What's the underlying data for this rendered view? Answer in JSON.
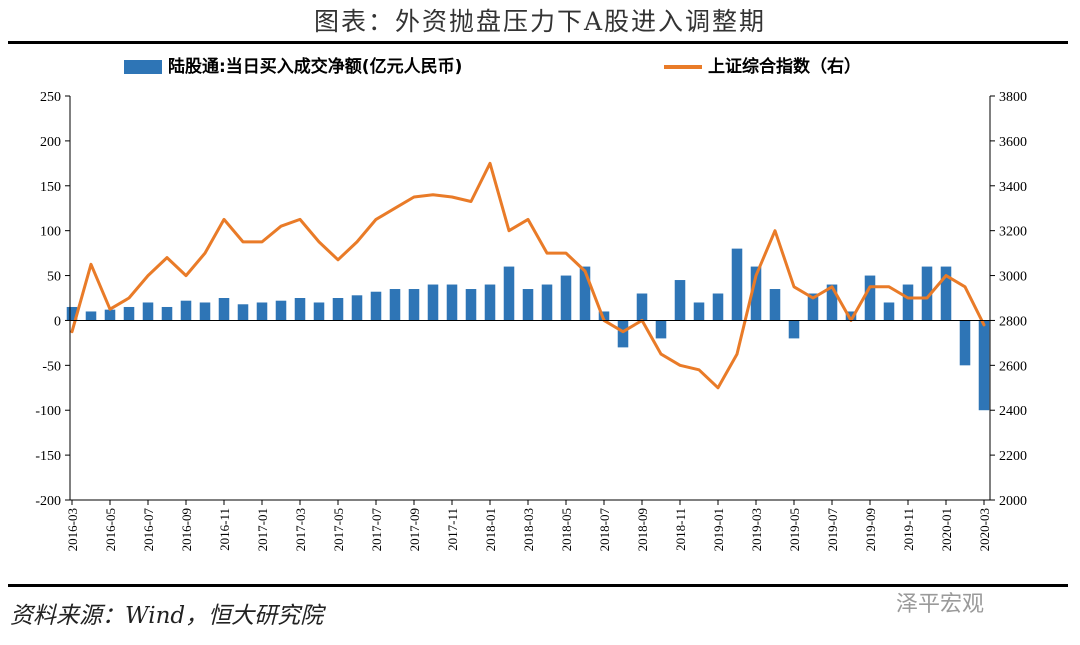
{
  "figure": {
    "title": "图表：外资抛盘压力下A股进入调整期",
    "source": "资料来源：Wind，恒大研究院",
    "watermark": "泽平宏观"
  },
  "chart_data": {
    "type": "bar+line",
    "legend": [
      "陆股通:当日买入成交净额(亿元人民币)",
      "上证综合指数（右）"
    ],
    "legend_position": "top",
    "grid": false,
    "y_left": {
      "range": [
        -200,
        250
      ],
      "ticks": [
        250,
        200,
        150,
        100,
        50,
        0,
        -50,
        -100,
        -150,
        -200
      ]
    },
    "y_right": {
      "range": [
        2000,
        3800
      ],
      "ticks": [
        3800,
        3600,
        3400,
        3200,
        3000,
        2800,
        2600,
        2400,
        2200,
        2000
      ]
    },
    "x_ticks": [
      "2016-03",
      "2016-05",
      "2016-07",
      "2016-09",
      "2016-11",
      "2017-01",
      "2017-03",
      "2017-05",
      "2017-07",
      "2017-09",
      "2017-11",
      "2018-01",
      "2018-03",
      "2018-05",
      "2018-07",
      "2018-09",
      "2018-11",
      "2019-01",
      "2019-03",
      "2019-05",
      "2019-07",
      "2019-09",
      "2019-11",
      "2020-01",
      "2020-03"
    ],
    "x_range": [
      "2016-03",
      "2020-03"
    ],
    "colors": {
      "bars": "#2e75b6",
      "line": "#e97b28"
    },
    "series": [
      {
        "name": "上证综合指数（右）",
        "kind": "line",
        "axis": "right",
        "x": [
          "2016-03",
          "2016-04",
          "2016-05",
          "2016-06",
          "2016-07",
          "2016-08",
          "2016-09",
          "2016-10",
          "2016-11",
          "2016-12",
          "2017-01",
          "2017-02",
          "2017-03",
          "2017-04",
          "2017-05",
          "2017-06",
          "2017-07",
          "2017-08",
          "2017-09",
          "2017-10",
          "2017-11",
          "2017-12",
          "2018-01",
          "2018-02",
          "2018-03",
          "2018-04",
          "2018-05",
          "2018-06",
          "2018-07",
          "2018-08",
          "2018-09",
          "2018-10",
          "2018-11",
          "2018-12",
          "2019-01",
          "2019-02",
          "2019-03",
          "2019-04",
          "2019-05",
          "2019-06",
          "2019-07",
          "2019-08",
          "2019-09",
          "2019-10",
          "2019-11",
          "2019-12",
          "2020-01",
          "2020-02",
          "2020-03"
        ],
        "values": [
          2750,
          3050,
          2850,
          2900,
          3000,
          3080,
          3000,
          3100,
          3250,
          3150,
          3150,
          3220,
          3250,
          3150,
          3070,
          3150,
          3250,
          3300,
          3350,
          3360,
          3350,
          3330,
          3500,
          3200,
          3250,
          3100,
          3100,
          3020,
          2800,
          2750,
          2800,
          2650,
          2600,
          2580,
          2500,
          2650,
          3000,
          3200,
          2950,
          2900,
          2950,
          2800,
          2950,
          2950,
          2900,
          2900,
          3000,
          2950,
          2780
        ]
      },
      {
        "name": "陆股通:当日买入成交净额(亿元人民币)",
        "kind": "bar",
        "axis": "left",
        "x": [
          "2016-03",
          "2016-04",
          "2016-05",
          "2016-06",
          "2016-07",
          "2016-08",
          "2016-09",
          "2016-10",
          "2016-11",
          "2016-12",
          "2017-01",
          "2017-02",
          "2017-03",
          "2017-04",
          "2017-05",
          "2017-06",
          "2017-07",
          "2017-08",
          "2017-09",
          "2017-10",
          "2017-11",
          "2017-12",
          "2018-01",
          "2018-02",
          "2018-03",
          "2018-04",
          "2018-05",
          "2018-06",
          "2018-07",
          "2018-08",
          "2018-09",
          "2018-10",
          "2018-11",
          "2018-12",
          "2019-01",
          "2019-02",
          "2019-03",
          "2019-04",
          "2019-05",
          "2019-06",
          "2019-07",
          "2019-08",
          "2019-09",
          "2019-10",
          "2019-11",
          "2019-12",
          "2020-01",
          "2020-02",
          "2020-03"
        ],
        "values": [
          15,
          10,
          12,
          15,
          20,
          15,
          22,
          20,
          25,
          18,
          20,
          22,
          25,
          20,
          25,
          28,
          32,
          35,
          35,
          40,
          40,
          35,
          40,
          60,
          35,
          40,
          50,
          60,
          10,
          -30,
          30,
          -20,
          45,
          20,
          30,
          80,
          60,
          35,
          -20,
          30,
          40,
          10,
          50,
          20,
          40,
          60,
          60,
          -50,
          -100
        ]
      }
    ]
  }
}
